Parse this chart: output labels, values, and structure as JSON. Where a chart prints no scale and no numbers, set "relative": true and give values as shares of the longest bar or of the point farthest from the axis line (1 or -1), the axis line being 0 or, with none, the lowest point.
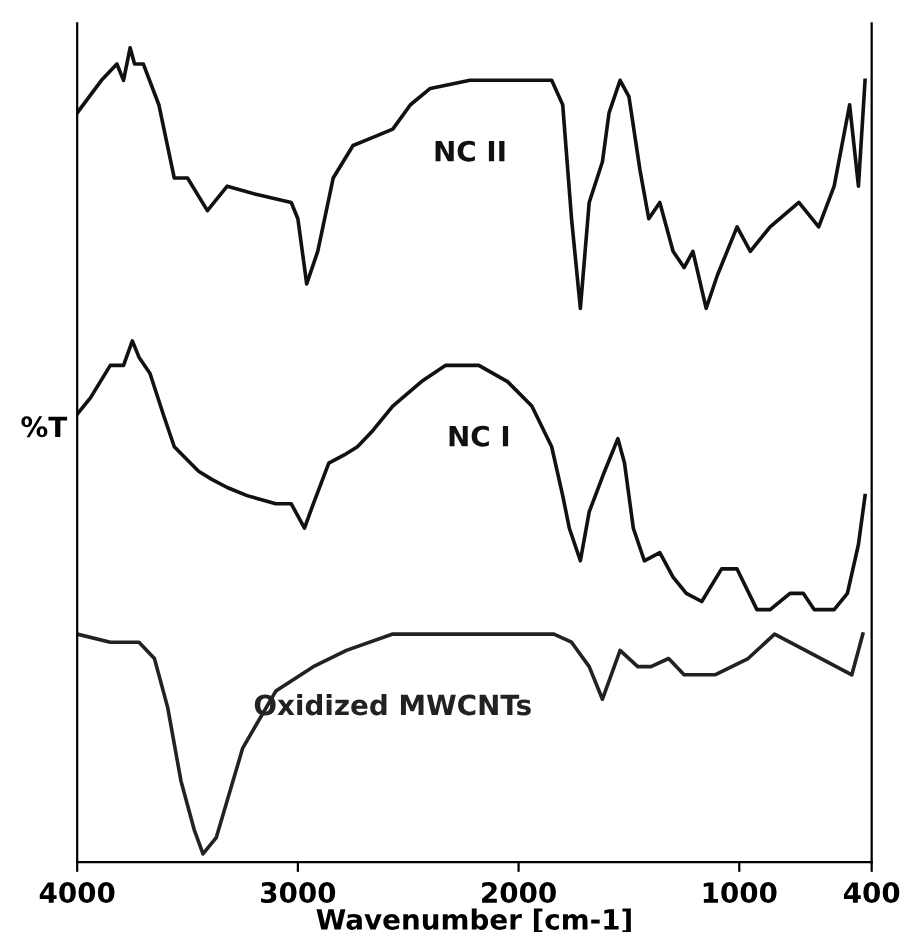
{
  "chart_data": {
    "type": "line",
    "relative": true,
    "xlabel": "Wavenumber [cm-1]",
    "ylabel": "%T",
    "xlim": [
      4000,
      400
    ],
    "xticks": [
      4000,
      3000,
      2000,
      1000,
      400
    ],
    "tick_labels": "x",
    "grid": false,
    "legend": false,
    "series": [
      {
        "name": "NC II",
        "color": "#111111",
        "x": [
          4000,
          3890,
          3820,
          3790,
          3760,
          3740,
          3700,
          3630,
          3560,
          3500,
          3410,
          3320,
          3190,
          3030,
          3000,
          2960,
          2910,
          2840,
          2750,
          2660,
          2570,
          2490,
          2400,
          2220,
          2050,
          1850,
          1800,
          1760,
          1720,
          1680,
          1620,
          1590,
          1540,
          1500,
          1450,
          1410,
          1360,
          1300,
          1250,
          1210,
          1150,
          1100,
          1010,
          950,
          860,
          730,
          640,
          570,
          500,
          460,
          430
        ],
        "values": [
          0.92,
          0.96,
          0.98,
          0.96,
          1.0,
          0.98,
          0.98,
          0.93,
          0.84,
          0.84,
          0.8,
          0.83,
          0.82,
          0.81,
          0.79,
          0.71,
          0.75,
          0.84,
          0.88,
          0.89,
          0.9,
          0.93,
          0.95,
          0.96,
          0.96,
          0.96,
          0.93,
          0.79,
          0.68,
          0.81,
          0.86,
          0.92,
          0.96,
          0.94,
          0.85,
          0.79,
          0.81,
          0.75,
          0.73,
          0.75,
          0.68,
          0.72,
          0.78,
          0.75,
          0.78,
          0.81,
          0.78,
          0.83,
          0.93,
          0.83,
          0.96
        ]
      },
      {
        "name": "NC I",
        "color": "#111111",
        "x": [
          4000,
          3940,
          3850,
          3790,
          3750,
          3720,
          3670,
          3610,
          3560,
          3450,
          3390,
          3320,
          3230,
          3100,
          3030,
          2970,
          2930,
          2860,
          2790,
          2730,
          2660,
          2570,
          2440,
          2330,
          2180,
          2050,
          1940,
          1850,
          1800,
          1770,
          1720,
          1680,
          1610,
          1550,
          1520,
          1480,
          1430,
          1360,
          1300,
          1240,
          1170,
          1080,
          1010,
          920,
          860,
          770,
          710,
          660,
          570,
          510,
          460,
          430
        ],
        "values": [
          0.55,
          0.57,
          0.61,
          0.61,
          0.64,
          0.62,
          0.6,
          0.55,
          0.51,
          0.48,
          0.47,
          0.46,
          0.45,
          0.44,
          0.44,
          0.41,
          0.44,
          0.49,
          0.5,
          0.51,
          0.53,
          0.56,
          0.59,
          0.61,
          0.61,
          0.59,
          0.56,
          0.51,
          0.45,
          0.41,
          0.37,
          0.43,
          0.48,
          0.52,
          0.49,
          0.41,
          0.37,
          0.38,
          0.35,
          0.33,
          0.32,
          0.36,
          0.36,
          0.31,
          0.31,
          0.33,
          0.33,
          0.31,
          0.31,
          0.33,
          0.39,
          0.45
        ]
      },
      {
        "name": "Oxidized MWCNTs",
        "color": "#222222",
        "x": [
          4000,
          3850,
          3720,
          3650,
          3590,
          3530,
          3470,
          3430,
          3370,
          3250,
          3100,
          2930,
          2780,
          2570,
          2280,
          1840,
          1760,
          1680,
          1620,
          1580,
          1540,
          1460,
          1400,
          1320,
          1250,
          1110,
          960,
          840,
          700,
          490,
          440
        ],
        "values": [
          0.28,
          0.27,
          0.27,
          0.25,
          0.19,
          0.1,
          0.04,
          0.01,
          0.03,
          0.14,
          0.21,
          0.24,
          0.26,
          0.28,
          0.28,
          0.28,
          0.27,
          0.24,
          0.2,
          0.23,
          0.26,
          0.24,
          0.24,
          0.25,
          0.23,
          0.23,
          0.25,
          0.28,
          0.26,
          0.23,
          0.28
        ]
      }
    ]
  }
}
